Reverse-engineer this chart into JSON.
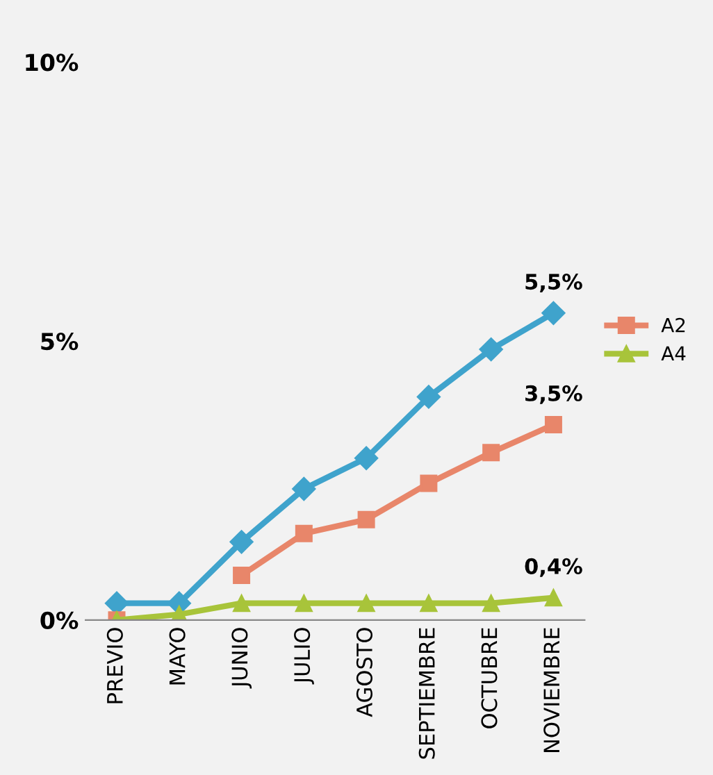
{
  "chart_data": {
    "type": "line",
    "categories": [
      "PREVIO",
      "MAYO",
      "JUNIO",
      "JULIO",
      "AGOSTO",
      "SEPTIEMBRE",
      "OCTUBRE",
      "NOVIEMBRE"
    ],
    "series": [
      {
        "color": "#3fa3cc",
        "marker": "diamond",
        "values": [
          0.3,
          0.3,
          1.4,
          2.35,
          2.9,
          4.0,
          4.85,
          5.5
        ],
        "value_labels": [
          null,
          null,
          null,
          null,
          null,
          null,
          null,
          "5,5%"
        ]
      },
      {
        "name": "A2",
        "color": "#e8866a",
        "marker": "square",
        "values": [
          0,
          null,
          0.8,
          1.55,
          1.8,
          2.45,
          3.0,
          3.5
        ],
        "value_labels": [
          null,
          null,
          null,
          null,
          null,
          null,
          null,
          "3,5%"
        ]
      },
      {
        "name": "A4",
        "color": "#a8c43a",
        "marker": "triangle",
        "values": [
          0,
          0.1,
          0.3,
          0.3,
          0.3,
          0.3,
          0.3,
          0.4
        ],
        "value_labels": [
          null,
          null,
          null,
          null,
          null,
          null,
          null,
          "0,4%"
        ]
      }
    ],
    "ylim": [
      0,
      10
    ],
    "yticks": [
      {
        "value": 0,
        "label": "0%"
      },
      {
        "value": 5,
        "label": "5%"
      },
      {
        "value": 10,
        "label": "10%"
      }
    ],
    "grid": false,
    "legend": "right"
  }
}
